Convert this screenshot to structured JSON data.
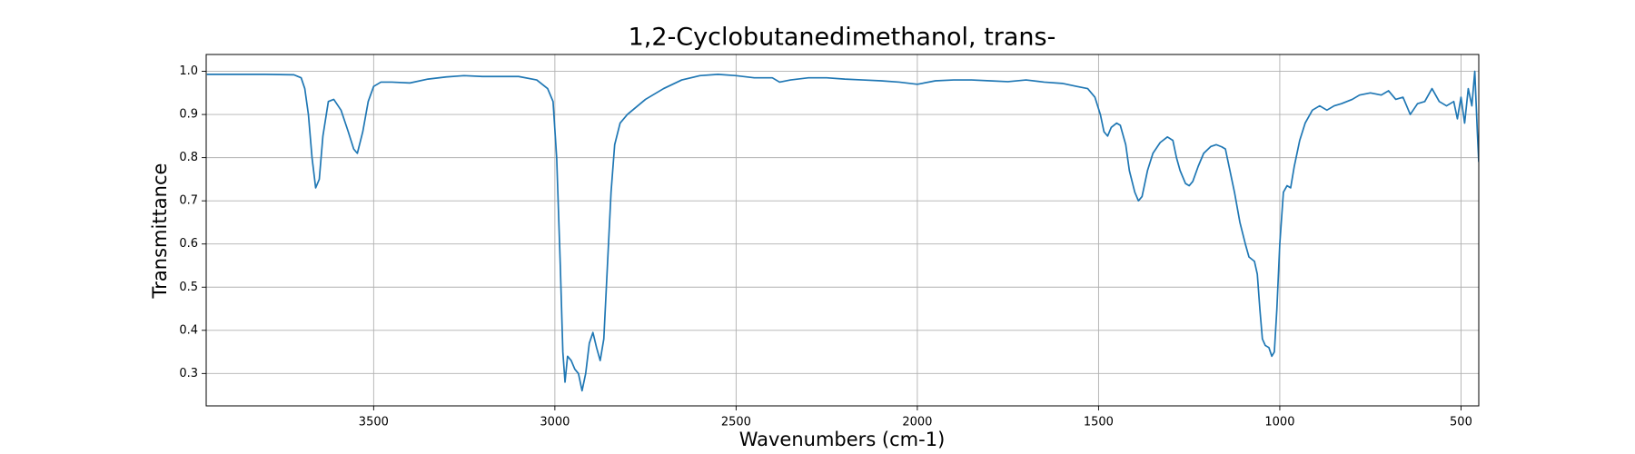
{
  "chart_data": {
    "type": "line",
    "title": "1,2-Cyclobutanedimethanol, trans-",
    "x_label": "Wavenumbers (cm-1)",
    "y_label": "Transmittance",
    "color": "#1f77b4",
    "grid": true,
    "xlim": [
      3962,
      451
    ],
    "ylim": [
      0.225,
      1.039
    ],
    "xticks": [
      3500,
      3000,
      2500,
      2000,
      1500,
      1000,
      500
    ],
    "yticks": [
      0.3,
      0.4,
      0.5,
      0.6,
      0.7,
      0.8,
      0.9,
      {
        "value": 1,
        "label": "1.0"
      }
    ],
    "x": [
      3960,
      3800,
      3720,
      3700,
      3690,
      3680,
      3670,
      3660,
      3650,
      3640,
      3625,
      3610,
      3590,
      3570,
      3555,
      3545,
      3530,
      3515,
      3500,
      3480,
      3450,
      3400,
      3350,
      3300,
      3250,
      3200,
      3100,
      3050,
      3020,
      3005,
      2995,
      2985,
      2978,
      2972,
      2965,
      2955,
      2945,
      2935,
      2925,
      2915,
      2905,
      2895,
      2885,
      2875,
      2865,
      2855,
      2845,
      2835,
      2820,
      2800,
      2750,
      2700,
      2650,
      2600,
      2550,
      2500,
      2450,
      2400,
      2380,
      2350,
      2300,
      2250,
      2200,
      2150,
      2100,
      2050,
      2000,
      1950,
      1900,
      1850,
      1800,
      1750,
      1700,
      1650,
      1600,
      1560,
      1530,
      1510,
      1495,
      1485,
      1475,
      1465,
      1450,
      1440,
      1425,
      1415,
      1400,
      1390,
      1380,
      1365,
      1350,
      1330,
      1310,
      1295,
      1285,
      1275,
      1260,
      1250,
      1240,
      1225,
      1210,
      1190,
      1175,
      1160,
      1150,
      1140,
      1125,
      1110,
      1095,
      1085,
      1070,
      1062,
      1055,
      1048,
      1040,
      1030,
      1022,
      1015,
      1008,
      1000,
      990,
      980,
      970,
      960,
      945,
      930,
      910,
      890,
      870,
      850,
      830,
      800,
      780,
      750,
      720,
      700,
      680,
      660,
      640,
      620,
      600,
      580,
      560,
      540,
      520,
      510,
      500,
      490,
      480,
      470,
      462,
      458,
      455,
      451
    ],
    "values": [
      0.993,
      0.993,
      0.992,
      0.985,
      0.96,
      0.9,
      0.8,
      0.73,
      0.75,
      0.85,
      0.93,
      0.935,
      0.91,
      0.86,
      0.82,
      0.81,
      0.86,
      0.93,
      0.965,
      0.975,
      0.975,
      0.973,
      0.982,
      0.987,
      0.99,
      0.988,
      0.988,
      0.98,
      0.96,
      0.93,
      0.8,
      0.55,
      0.35,
      0.28,
      0.34,
      0.33,
      0.31,
      0.3,
      0.26,
      0.3,
      0.37,
      0.395,
      0.36,
      0.33,
      0.38,
      0.55,
      0.72,
      0.83,
      0.88,
      0.9,
      0.935,
      0.96,
      0.98,
      0.99,
      0.993,
      0.99,
      0.985,
      0.985,
      0.975,
      0.98,
      0.985,
      0.985,
      0.982,
      0.98,
      0.978,
      0.975,
      0.97,
      0.978,
      0.98,
      0.98,
      0.978,
      0.976,
      0.98,
      0.975,
      0.972,
      0.965,
      0.96,
      0.94,
      0.9,
      0.86,
      0.85,
      0.87,
      0.88,
      0.875,
      0.83,
      0.77,
      0.72,
      0.7,
      0.71,
      0.77,
      0.81,
      0.835,
      0.848,
      0.84,
      0.8,
      0.77,
      0.74,
      0.735,
      0.745,
      0.78,
      0.81,
      0.826,
      0.83,
      0.825,
      0.82,
      0.78,
      0.72,
      0.65,
      0.6,
      0.57,
      0.56,
      0.53,
      0.45,
      0.38,
      0.365,
      0.36,
      0.34,
      0.35,
      0.45,
      0.6,
      0.72,
      0.735,
      0.73,
      0.78,
      0.84,
      0.88,
      0.91,
      0.92,
      0.91,
      0.92,
      0.925,
      0.935,
      0.945,
      0.95,
      0.945,
      0.955,
      0.935,
      0.94,
      0.9,
      0.925,
      0.93,
      0.96,
      0.93,
      0.92,
      0.93,
      0.89,
      0.94,
      0.88,
      0.96,
      0.92,
      1.0,
      0.92,
      0.86,
      0.79
    ]
  }
}
